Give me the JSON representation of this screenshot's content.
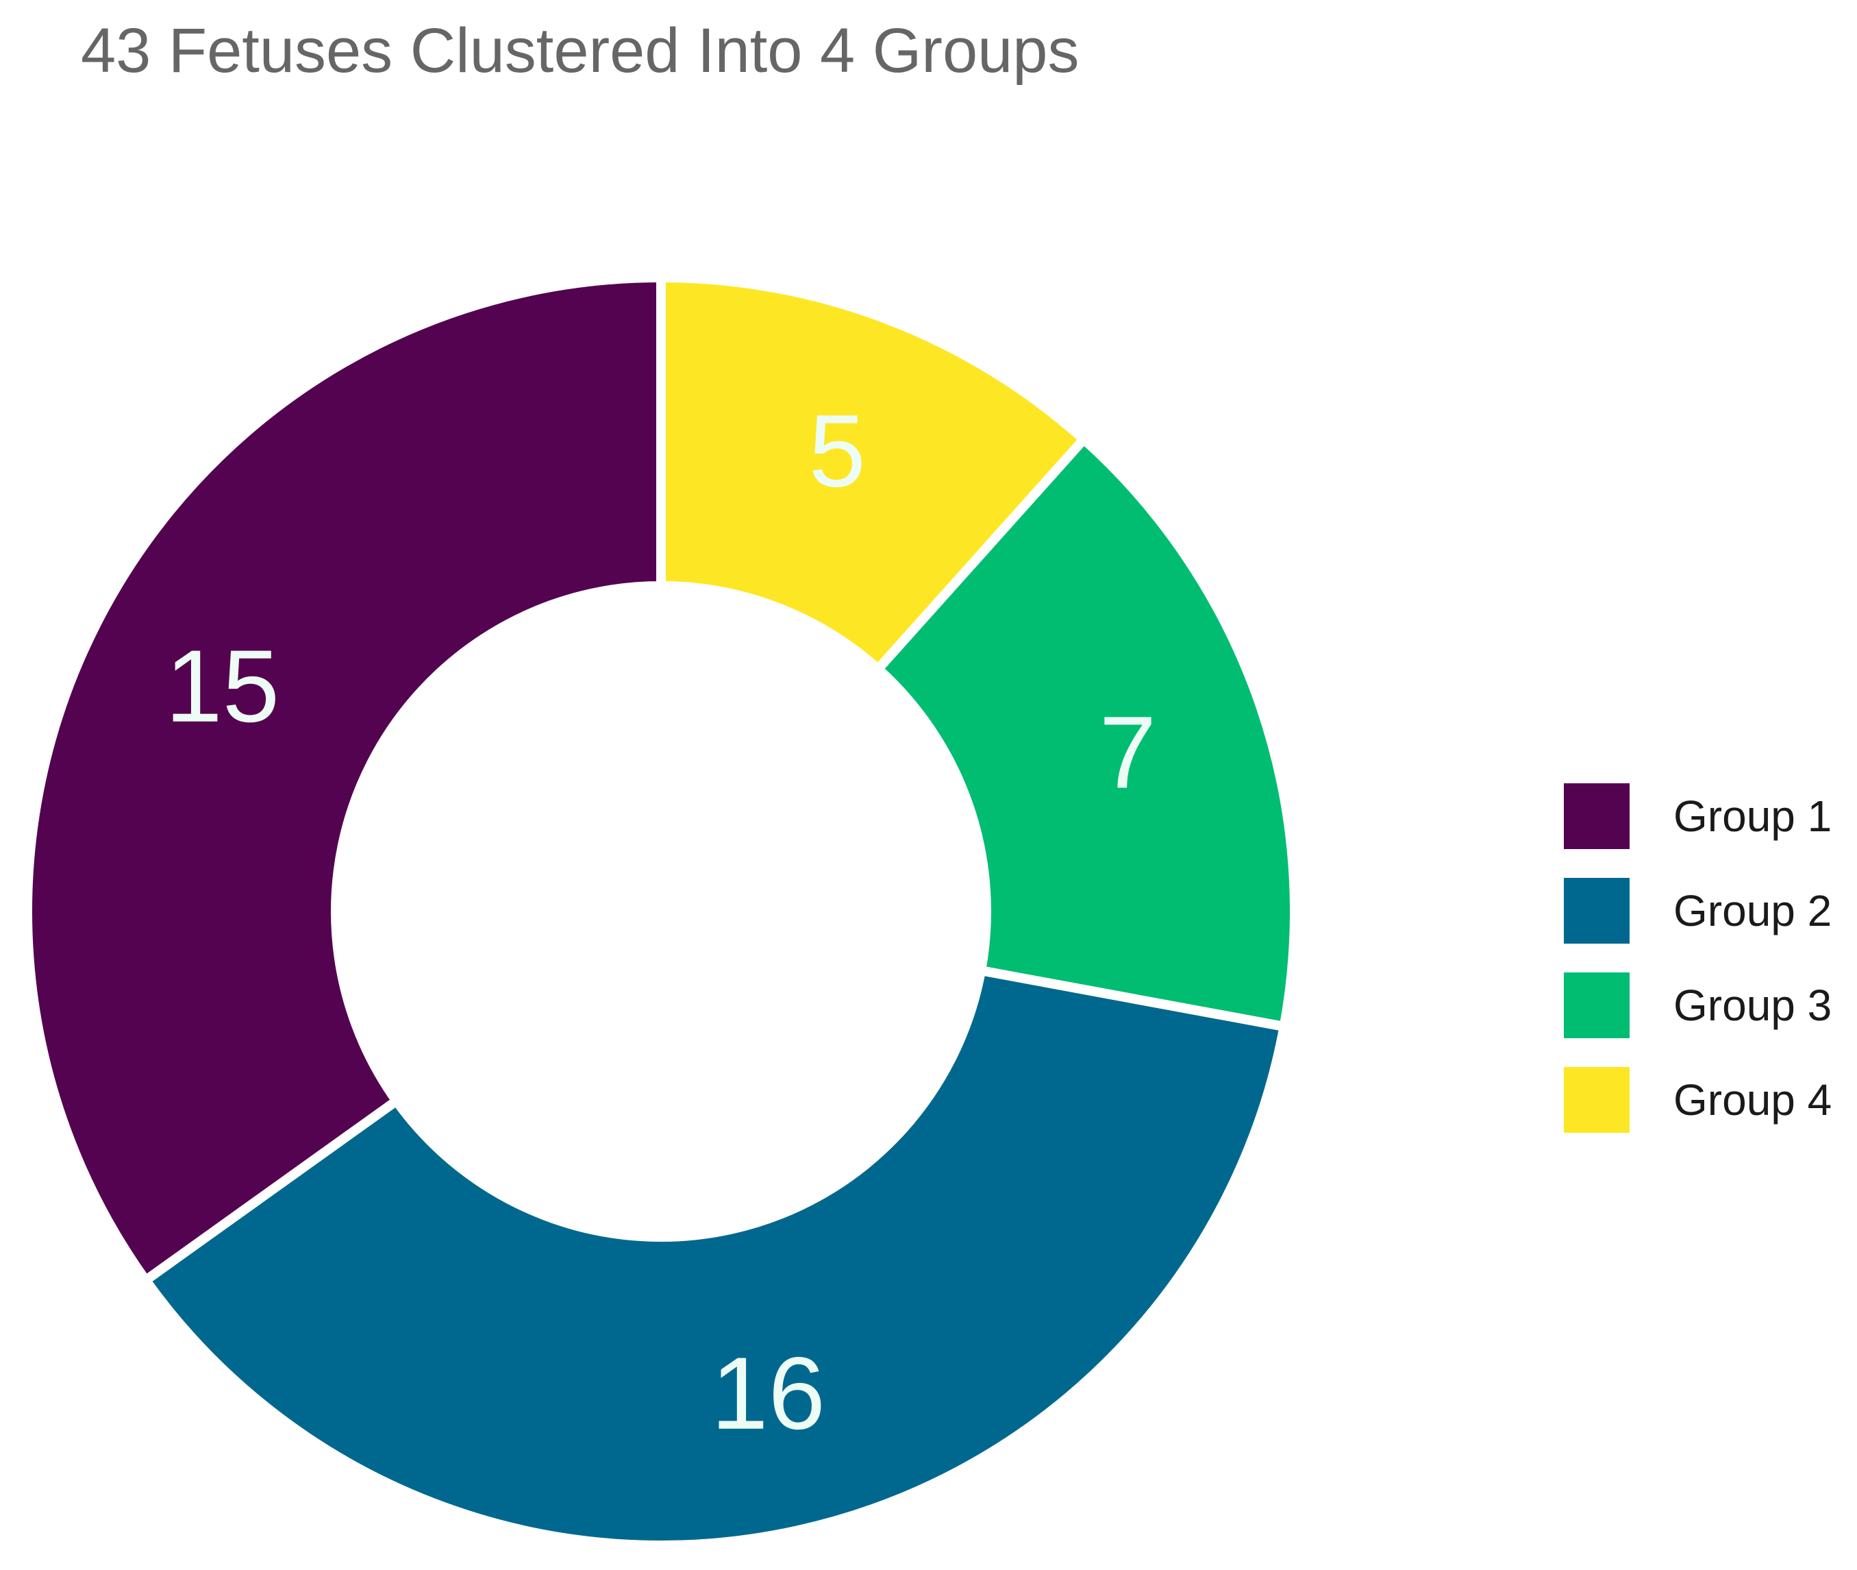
{
  "chart_data": {
    "type": "pie",
    "title": "43 Fetuses Clustered Into 4 Groups",
    "categories": [
      "Group 4",
      "Group 3",
      "Group 2",
      "Group 1"
    ],
    "values": [
      5,
      7,
      16,
      15
    ],
    "colors": [
      "#fde725",
      "#00bd72",
      "#00688f",
      "#540350"
    ],
    "data_labels": [
      "5",
      "7",
      "16",
      "15"
    ],
    "donut": true,
    "legend": {
      "placement": "right",
      "entries": [
        {
          "label": "Group 1",
          "color": "#540350"
        },
        {
          "label": "Group 2",
          "color": "#00688f"
        },
        {
          "label": "Group 3",
          "color": "#00bd72"
        },
        {
          "label": "Group 4",
          "color": "#fde725"
        }
      ]
    }
  }
}
